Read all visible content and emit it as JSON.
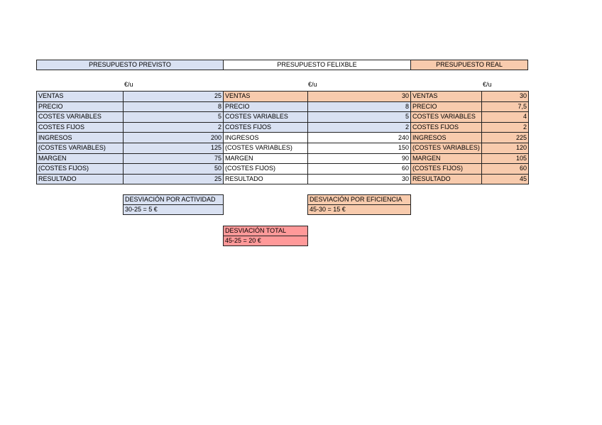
{
  "headers": {
    "previsto": "PRESUPUESTO PREVISTO",
    "flexible": "PRESUPUESTO FELIXBLE",
    "real": "PRESUPUESTO REAL"
  },
  "unit_label": "€/u",
  "colors": {
    "previsto": "#d9e1f2",
    "real": "#f8cbad",
    "total": "#ff9999"
  },
  "rows": [
    {
      "label": "VENTAS",
      "previsto": "25",
      "flexible": "30",
      "real": "30"
    },
    {
      "label": "PRECIO",
      "previsto": "8",
      "flexible": "8",
      "real": "7,5"
    },
    {
      "label": "COSTES VARIABLES",
      "previsto": "5",
      "flexible": "5",
      "real": "4"
    },
    {
      "label": "COSTES FIJOS",
      "previsto": "2",
      "flexible": "2",
      "real": "2"
    },
    {
      "label": "INGRESOS",
      "previsto": "200",
      "flexible": "240",
      "real": "225"
    },
    {
      "label": "(COSTES VARIABLES)",
      "previsto": "125",
      "flexible": "150",
      "real": "120"
    },
    {
      "label": "MARGEN",
      "previsto": "75",
      "flexible": "90",
      "real": "105"
    },
    {
      "label": "(COSTES FIJOS)",
      "previsto": "50",
      "flexible": "60",
      "real": "60"
    },
    {
      "label": "RESULTADO",
      "previsto": "25",
      "flexible": "30",
      "real": "45"
    }
  ],
  "deviations": {
    "actividad": {
      "title": "DESVIACIÓN POR ACTIVIDAD",
      "value": "30-25 = 5 €"
    },
    "eficiencia": {
      "title": "DESVIACIÓN POR EFICIENCIA",
      "value": "45-30 = 15 €"
    },
    "total": {
      "title": "DESVIACIÓN TOTAL",
      "value": "45-25 = 20 €"
    }
  }
}
